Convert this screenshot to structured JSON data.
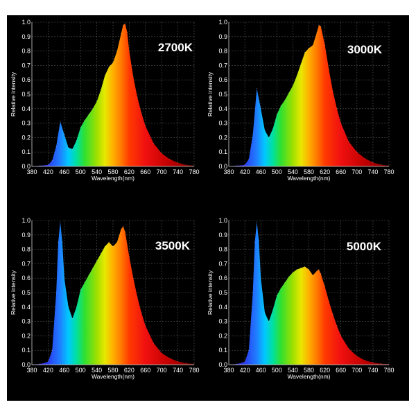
{
  "chart_data": [
    {
      "type": "area",
      "title": "2700K",
      "xlabel": "Wavelength(nm)",
      "ylabel": "Relative intensity",
      "xlim": [
        380,
        780
      ],
      "ylim": [
        0,
        1.0
      ],
      "xticks": [
        380,
        420,
        460,
        500,
        540,
        580,
        620,
        660,
        700,
        740,
        780
      ],
      "yticks": [
        0.0,
        0.1,
        0.2,
        0.3,
        0.4,
        0.5,
        0.6,
        0.7,
        0.8,
        0.9,
        1.0
      ],
      "grid": true,
      "x": [
        380,
        400,
        420,
        430,
        440,
        450,
        460,
        470,
        480,
        490,
        500,
        510,
        520,
        530,
        540,
        550,
        560,
        570,
        580,
        590,
        600,
        605,
        610,
        615,
        620,
        630,
        640,
        650,
        660,
        680,
        700,
        720,
        740,
        760,
        780
      ],
      "y": [
        0.0,
        0.005,
        0.01,
        0.04,
        0.14,
        0.31,
        0.22,
        0.13,
        0.12,
        0.18,
        0.27,
        0.32,
        0.36,
        0.4,
        0.45,
        0.53,
        0.63,
        0.69,
        0.72,
        0.8,
        0.92,
        0.98,
        0.99,
        0.93,
        0.8,
        0.62,
        0.48,
        0.37,
        0.28,
        0.16,
        0.09,
        0.05,
        0.025,
        0.01,
        0.005
      ]
    },
    {
      "type": "area",
      "title": "3000K",
      "xlabel": "Wavelength(nm)",
      "ylabel": "Relative intensity",
      "xlim": [
        380,
        780
      ],
      "ylim": [
        0,
        1.0
      ],
      "xticks": [
        380,
        420,
        460,
        500,
        540,
        580,
        620,
        660,
        700,
        740,
        780
      ],
      "yticks": [
        0.0,
        0.1,
        0.2,
        0.3,
        0.4,
        0.5,
        0.6,
        0.7,
        0.8,
        0.9,
        1.0
      ],
      "grid": true,
      "x": [
        380,
        400,
        420,
        430,
        440,
        450,
        460,
        470,
        480,
        490,
        500,
        510,
        520,
        530,
        540,
        550,
        560,
        570,
        580,
        590,
        600,
        605,
        610,
        620,
        630,
        640,
        650,
        660,
        680,
        700,
        720,
        740,
        760,
        780
      ],
      "y": [
        0.0,
        0.005,
        0.01,
        0.05,
        0.22,
        0.54,
        0.4,
        0.25,
        0.2,
        0.26,
        0.36,
        0.42,
        0.46,
        0.51,
        0.56,
        0.63,
        0.71,
        0.79,
        0.82,
        0.84,
        0.93,
        0.98,
        0.97,
        0.84,
        0.67,
        0.52,
        0.4,
        0.3,
        0.17,
        0.1,
        0.055,
        0.027,
        0.012,
        0.005
      ]
    },
    {
      "type": "area",
      "title": "3500K",
      "xlabel": "Wavelength(nm)",
      "ylabel": "Relative intensity",
      "xlim": [
        380,
        780
      ],
      "ylim": [
        0,
        1.0
      ],
      "xticks": [
        380,
        420,
        460,
        500,
        540,
        580,
        620,
        660,
        700,
        740,
        780
      ],
      "yticks": [
        0.0,
        0.1,
        0.2,
        0.3,
        0.4,
        0.5,
        0.6,
        0.7,
        0.8,
        0.9,
        1.0
      ],
      "grid": true,
      "x": [
        380,
        400,
        420,
        430,
        440,
        445,
        450,
        455,
        460,
        470,
        480,
        490,
        500,
        510,
        520,
        530,
        540,
        550,
        560,
        570,
        580,
        590,
        600,
        605,
        610,
        620,
        630,
        640,
        650,
        660,
        680,
        700,
        720,
        740,
        760,
        780
      ],
      "y": [
        0.0,
        0.005,
        0.02,
        0.1,
        0.5,
        0.85,
        0.99,
        0.85,
        0.6,
        0.4,
        0.32,
        0.4,
        0.52,
        0.57,
        0.62,
        0.67,
        0.72,
        0.77,
        0.82,
        0.85,
        0.82,
        0.85,
        0.94,
        0.96,
        0.92,
        0.75,
        0.6,
        0.47,
        0.36,
        0.27,
        0.15,
        0.08,
        0.045,
        0.022,
        0.01,
        0.005
      ]
    },
    {
      "type": "area",
      "title": "5000K",
      "xlabel": "Wavelength(nm)",
      "ylabel": "Relative intensity",
      "xlim": [
        380,
        780
      ],
      "ylim": [
        0,
        1.0
      ],
      "xticks": [
        380,
        420,
        460,
        500,
        540,
        580,
        620,
        660,
        700,
        740,
        780
      ],
      "yticks": [
        0.0,
        0.1,
        0.2,
        0.3,
        0.4,
        0.5,
        0.6,
        0.7,
        0.8,
        0.9,
        1.0
      ],
      "grid": true,
      "x": [
        380,
        400,
        420,
        430,
        440,
        445,
        450,
        455,
        460,
        470,
        480,
        490,
        500,
        510,
        520,
        530,
        540,
        550,
        560,
        570,
        580,
        590,
        600,
        605,
        610,
        620,
        630,
        640,
        650,
        660,
        680,
        700,
        720,
        740,
        760,
        780
      ],
      "y": [
        0.0,
        0.005,
        0.02,
        0.1,
        0.5,
        0.85,
        0.99,
        0.86,
        0.6,
        0.36,
        0.3,
        0.38,
        0.48,
        0.53,
        0.57,
        0.61,
        0.64,
        0.66,
        0.67,
        0.68,
        0.66,
        0.62,
        0.65,
        0.66,
        0.63,
        0.54,
        0.44,
        0.35,
        0.27,
        0.2,
        0.11,
        0.06,
        0.03,
        0.015,
        0.007,
        0.003
      ]
    }
  ]
}
